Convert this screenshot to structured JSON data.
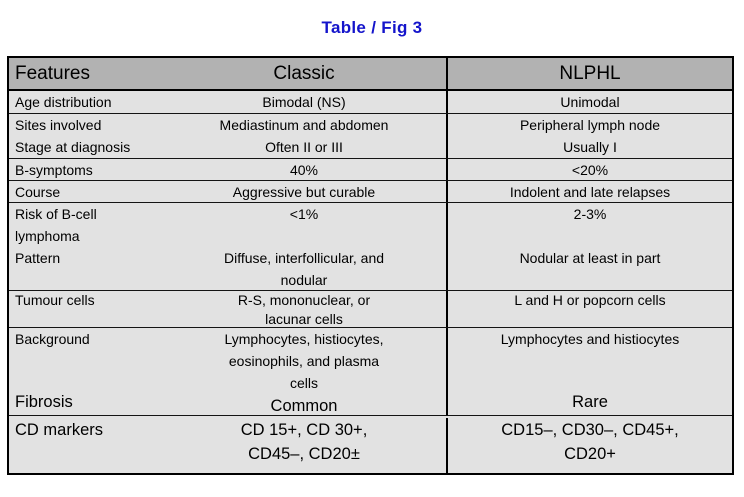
{
  "title": "Table / Fig 3",
  "colors": {
    "title_blue": "#1414cb",
    "header_bg": "#b2b2b2",
    "body_bg": "#e2e2e2",
    "border": "#000000"
  },
  "table": {
    "header": {
      "features": "Features",
      "classic": "Classic",
      "nlphl": "NLPHL"
    },
    "rows": [
      {
        "feature_lines": [
          "Age distribution"
        ],
        "classic_lines": [
          "Bimodal (NS)"
        ],
        "nlphl_lines": [
          "Unimodal"
        ]
      },
      {
        "feature_lines": [
          "Sites involved",
          "Stage at diagnosis"
        ],
        "classic_lines": [
          "Mediastinum and abdomen",
          "Often II or III"
        ],
        "nlphl_lines": [
          "Peripheral lymph node",
          "Usually I"
        ]
      },
      {
        "feature_lines": [
          "B-symptoms"
        ],
        "classic_lines": [
          "40%"
        ],
        "nlphl_lines": [
          "<20%"
        ]
      },
      {
        "feature_lines": [
          "Course"
        ],
        "classic_lines": [
          "Aggressive but curable"
        ],
        "nlphl_lines": [
          "Indolent and late relapses"
        ]
      },
      {
        "feature_lines": [
          "Risk of B-cell",
          "lymphoma",
          "Pattern"
        ],
        "classic_lines": [
          "<1%",
          "",
          "Diffuse, interfollicular, and",
          "nodular"
        ],
        "nlphl_lines": [
          "2-3%",
          "",
          "Nodular at least in part"
        ]
      },
      {
        "feature_lines": [
          "Tumour cells"
        ],
        "classic_lines": [
          "R-S, mononuclear, or",
          "lacunar cells"
        ],
        "nlphl_lines": [
          "L and H or popcorn cells"
        ]
      },
      {
        "feature_top": "Background",
        "feature_bottom": "Fibrosis",
        "classic_top_lines": [
          "Lymphocytes, histiocytes,",
          "eosinophils, and plasma",
          "cells"
        ],
        "classic_bottom": "Common",
        "nlphl_top_lines": [
          "Lymphocytes and histiocytes"
        ],
        "nlphl_bottom": "Rare"
      },
      {
        "feature_lines": [
          "CD markers"
        ],
        "classic_lines": [
          "CD 15+, CD 30+,",
          "CD45–, CD20±"
        ],
        "nlphl_lines": [
          "CD15–, CD30–, CD45+,",
          "CD20+"
        ]
      }
    ]
  }
}
